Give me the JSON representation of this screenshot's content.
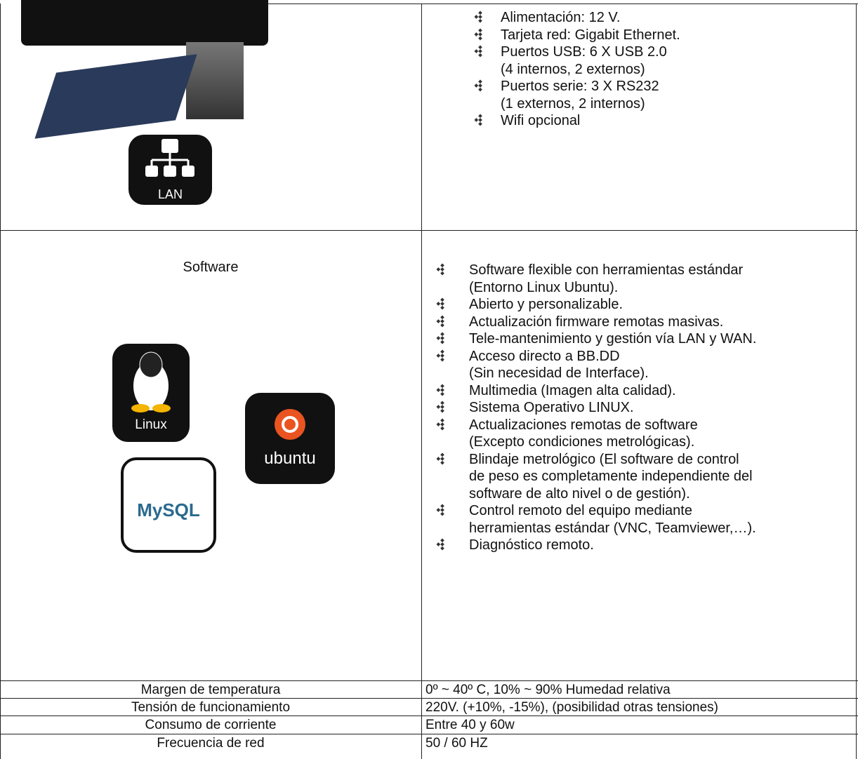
{
  "icons": {
    "lan": "LAN",
    "linux": "Linux",
    "ubuntu": "ubuntu",
    "mysql": "MySQL"
  },
  "hardware": {
    "items": [
      [
        "Alimentación: 12 V."
      ],
      [
        "Tarjeta red: Gigabit Ethernet."
      ],
      [
        "Puertos USB: 6 X USB 2.0",
        "(4 internos, 2 externos)"
      ],
      [
        "Puertos serie: 3 X RS232",
        "(1 externos, 2 internos)"
      ],
      [
        "Wifi opcional"
      ]
    ]
  },
  "software": {
    "label": "Software",
    "items": [
      [
        "Software flexible con herramientas estándar",
        "(Entorno Linux Ubuntu)."
      ],
      [
        "Abierto y personalizable."
      ],
      [
        "Actualización firmware remotas masivas."
      ],
      [
        "Tele-mantenimiento y gestión vía LAN y WAN."
      ],
      [
        "Acceso directo a BB.DD",
        "(Sin necesidad de Interface)."
      ],
      [
        "Multimedia (Imagen alta calidad)."
      ],
      [
        "Sistema Operativo LINUX."
      ],
      [
        "Actualizaciones remotas de software",
        "(Excepto condiciones metrológicas)."
      ],
      [
        "Blindaje metrológico (El software de control",
        "de peso es completamente independiente del",
        "software de alto nivel o de gestión)."
      ],
      [
        "Control remoto del equipo mediante",
        "herramientas estándar (VNC, Teamviewer,…)."
      ],
      [
        "Diagnóstico remoto."
      ]
    ]
  },
  "specs": [
    [
      "Margen de temperatura",
      "0º ~ 40º C, 10% ~ 90% Humedad relativa"
    ],
    [
      "Tensión de funcionamiento",
      "220V. (+10%, -15%), (posibilidad otras tensiones)"
    ],
    [
      "Consumo de corriente",
      "Entre 40 y 60w"
    ],
    [
      "Frecuencia de red",
      "50 / 60 HZ"
    ]
  ]
}
